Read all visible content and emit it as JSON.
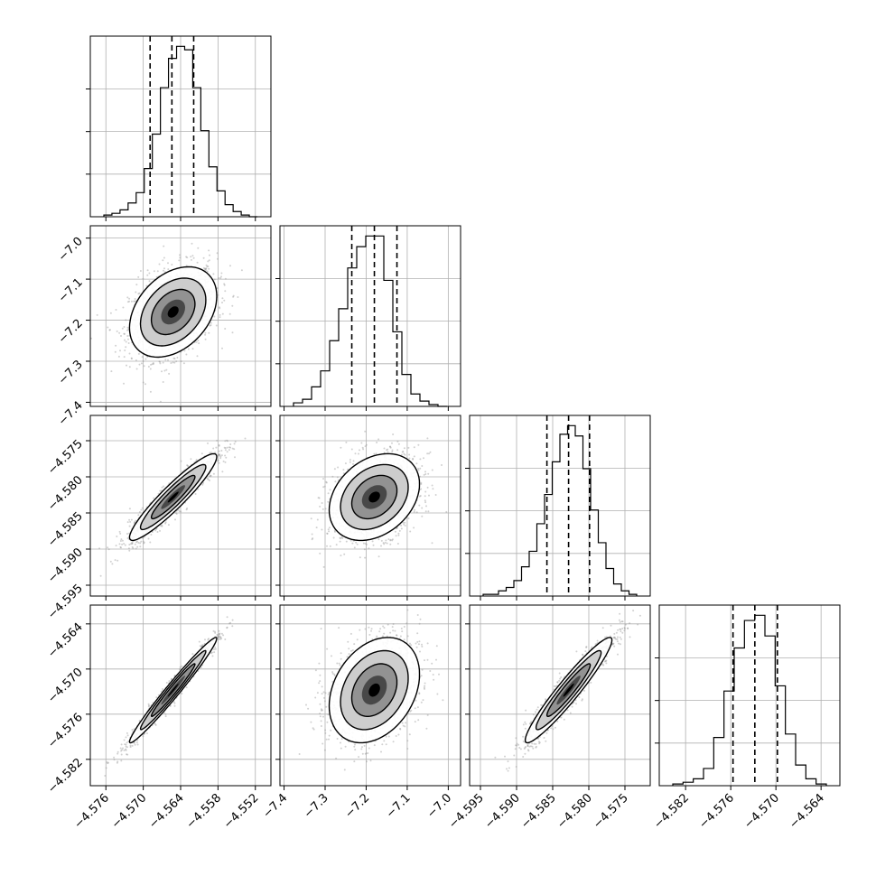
{
  "figure": {
    "type": "corner-plot",
    "grid": true,
    "dashed_quantile_lines": true,
    "colors": {
      "axis": "#000000",
      "grid": "#b0b0b0",
      "scatter": "#9a9a9a",
      "contour": "#000000",
      "density_fill": "#5a5a5a"
    }
  },
  "chart_data": [
    {
      "panel": "hist-0",
      "type": "histogram",
      "x_ticks": [
        "−4.576",
        "−4.570",
        "−4.564",
        "−4.558",
        "−4.552"
      ],
      "x_range": [
        -4.5785,
        -4.5495
      ],
      "median": -4.5654,
      "quantiles": [
        -4.5689,
        -4.5619
      ],
      "bin_counts": [
        1,
        2,
        4,
        8,
        14,
        28,
        48,
        75,
        92,
        99,
        97,
        75,
        50,
        29,
        15,
        7,
        3,
        1,
        0
      ]
    },
    {
      "panel": "hist-1",
      "type": "histogram",
      "x_ticks": [
        "−7.4",
        "−7.3",
        "−7.2",
        "−7.1",
        "−7.0"
      ],
      "x_range": [
        -7.41,
        -6.97
      ],
      "median": -7.18,
      "quantiles": [
        -7.235,
        -7.125
      ],
      "bin_counts": [
        2,
        4,
        11,
        20,
        37,
        55,
        78,
        90,
        96,
        96,
        71,
        42,
        18,
        7,
        3,
        1,
        0
      ]
    },
    {
      "panel": "hist-2",
      "type": "histogram",
      "x_ticks": [
        "−4.595",
        "−4.590",
        "−4.585",
        "−4.580",
        "−4.575"
      ],
      "x_range": [
        -4.5965,
        -4.5715
      ],
      "median": -4.5828,
      "quantiles": [
        -4.5858,
        -4.5799
      ],
      "bin_counts": [
        1,
        1,
        3,
        5,
        9,
        17,
        26,
        42,
        59,
        78,
        94,
        99,
        93,
        74,
        50,
        31,
        16,
        7,
        3,
        1
      ]
    },
    {
      "panel": "hist-3",
      "type": "histogram",
      "x_ticks": [
        "−4.582",
        "−4.576",
        "−4.570",
        "−4.564"
      ],
      "x_range": [
        -4.5855,
        -4.5615
      ],
      "median": -4.5728,
      "quantiles": [
        -4.5757,
        -4.5698
      ],
      "bin_counts": [
        1,
        2,
        4,
        10,
        28,
        55,
        80,
        96,
        99,
        87,
        58,
        30,
        12,
        4,
        1
      ]
    },
    {
      "panel": "pair-1-0",
      "type": "2d-density",
      "x_ticks": [
        "−4.576",
        "−4.570",
        "−4.564",
        "−4.558",
        "−4.552"
      ],
      "y_ticks": [
        "−7.0",
        "−7.1",
        "−7.2",
        "−7.3",
        "−7.4"
      ],
      "x_range": [
        -4.5785,
        -4.5495
      ],
      "y_range": [
        -7.41,
        -6.97
      ],
      "center": [
        -4.5652,
        -7.18
      ],
      "spread": [
        0.0035,
        0.055
      ],
      "correlation": 0.35
    },
    {
      "panel": "pair-2-0",
      "type": "2d-density",
      "x_ticks": [
        "−4.576",
        "−4.570",
        "−4.564",
        "−4.558",
        "−4.552"
      ],
      "y_ticks": [
        "−4.575",
        "−4.580",
        "−4.585",
        "−4.590",
        "−4.595"
      ],
      "x_range": [
        -4.5785,
        -4.5495
      ],
      "y_range": [
        -4.5965,
        -4.5715
      ],
      "center": [
        -4.5652,
        -4.5828
      ],
      "spread": [
        0.0035,
        0.003
      ],
      "correlation": 0.93
    },
    {
      "panel": "pair-2-1",
      "type": "2d-density",
      "x_ticks": [
        "−7.4",
        "−7.3",
        "−7.2",
        "−7.1",
        "−7.0"
      ],
      "y_ticks": [
        "−4.575",
        "−4.580",
        "−4.585",
        "−4.590",
        "−4.595"
      ],
      "x_range": [
        -7.41,
        -6.97
      ],
      "y_range": [
        -4.5965,
        -4.5715
      ],
      "center": [
        -7.18,
        -4.5828
      ],
      "spread": [
        0.055,
        0.003
      ],
      "correlation": 0.3
    },
    {
      "panel": "pair-3-0",
      "type": "2d-density",
      "x_ticks": [
        "−4.576",
        "−4.570",
        "−4.564",
        "−4.558",
        "−4.552"
      ],
      "y_ticks": [
        "−4.564",
        "−4.570",
        "−4.576",
        "−4.582"
      ],
      "x_range": [
        -4.5785,
        -4.5495
      ],
      "y_range": [
        -4.5855,
        -4.5615
      ],
      "center": [
        -4.5652,
        -4.5728
      ],
      "spread": [
        0.0035,
        0.0035
      ],
      "correlation": 0.98
    },
    {
      "panel": "pair-3-1",
      "type": "2d-density",
      "x_ticks": [
        "−7.4",
        "−7.3",
        "−7.2",
        "−7.1",
        "−7.0"
      ],
      "y_ticks": [
        "−4.564",
        "−4.570",
        "−4.576",
        "−4.582"
      ],
      "x_range": [
        -7.41,
        -6.97
      ],
      "y_range": [
        -4.5855,
        -4.5615
      ],
      "center": [
        -7.18,
        -4.5728
      ],
      "spread": [
        0.055,
        0.0035
      ],
      "correlation": 0.3
    },
    {
      "panel": "pair-3-2",
      "type": "2d-density",
      "x_ticks": [
        "−4.595",
        "−4.590",
        "−4.585",
        "−4.580",
        "−4.575"
      ],
      "y_ticks": [
        "−4.564",
        "−4.570",
        "−4.576",
        "−4.582"
      ],
      "x_range": [
        -4.5965,
        -4.5715
      ],
      "y_range": [
        -4.5855,
        -4.5615
      ],
      "center": [
        -4.5828,
        -4.5728
      ],
      "spread": [
        0.003,
        0.0035
      ],
      "correlation": 0.95
    }
  ]
}
